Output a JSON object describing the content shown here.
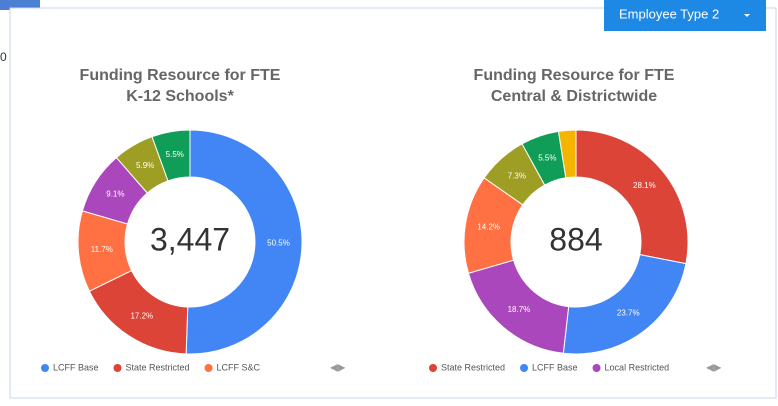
{
  "background_text": "0",
  "button": {
    "label": "Employee Type 2"
  },
  "chart_data": [
    {
      "type": "donut",
      "title_lines": [
        "Funding Resource for FTE",
        "K-12 Schools*"
      ],
      "center_label": "3,447",
      "categories": [
        "LCFF Base",
        "State Restricted",
        "LCFF S&C",
        null,
        null,
        null
      ],
      "values": [
        50.5,
        17.2,
        11.7,
        9.1,
        5.9,
        5.5
      ],
      "value_labels": [
        "50.5%",
        "17.2%",
        "11.7%",
        "9.1%",
        "5.9%",
        "5.5%"
      ],
      "colors": [
        "#4285f4",
        "#db4437",
        "#ff7043",
        "#ab47bc",
        "#9e9d24",
        "#0f9d58"
      ]
    },
    {
      "type": "donut",
      "title_lines": [
        "Funding Resource for FTE",
        "Central & Districtwide"
      ],
      "center_label": "884",
      "categories": [
        "State Restricted",
        "LCFF Base",
        "Local Restricted",
        null,
        null,
        null,
        null
      ],
      "values": [
        28.1,
        23.7,
        18.7,
        14.2,
        7.3,
        5.5,
        2.5
      ],
      "value_labels": [
        "28.1%",
        "23.7%",
        "18.7%",
        "14.2%",
        "7.3%",
        "5.5%",
        null
      ],
      "colors": [
        "#db4437",
        "#4285f4",
        "#ab47bc",
        "#ff7043",
        "#9e9d24",
        "#0f9d58",
        "#f4b400"
      ]
    }
  ]
}
